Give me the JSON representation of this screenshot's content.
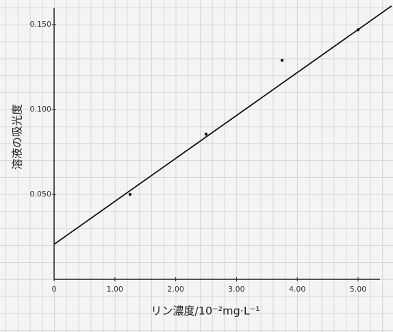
{
  "chart_data": {
    "type": "scatter",
    "x_label": "リン濃度/10⁻²mg·L⁻¹",
    "y_label": "溶液の吸光度",
    "series": [
      {
        "x": [
          1.25,
          2.5,
          3.75,
          5.0
        ],
        "values": [
          0.05,
          0.0855,
          0.129,
          0.147
        ],
        "color": "#111111",
        "mode": "markers"
      },
      {
        "x": [
          0,
          5.55
        ],
        "values": [
          0.0206,
          0.161
        ],
        "color": "#111111",
        "mode": "line"
      }
    ],
    "xlim": [
      0,
      5.6
    ],
    "ylim": [
      0,
      0.16
    ],
    "xticks": [
      0,
      {
        "value": 1,
        "label": "1.00"
      },
      {
        "value": 2,
        "label": "2.00"
      },
      {
        "value": 3,
        "label": "3.00"
      },
      {
        "value": 4,
        "label": "4.00"
      },
      {
        "value": 5,
        "label": "5.00"
      }
    ],
    "yticks": [
      {
        "value": 0.05,
        "label": "0.050"
      },
      {
        "value": 0.1,
        "label": "0.100"
      },
      {
        "value": 0.15,
        "label": "0.150"
      }
    ]
  }
}
